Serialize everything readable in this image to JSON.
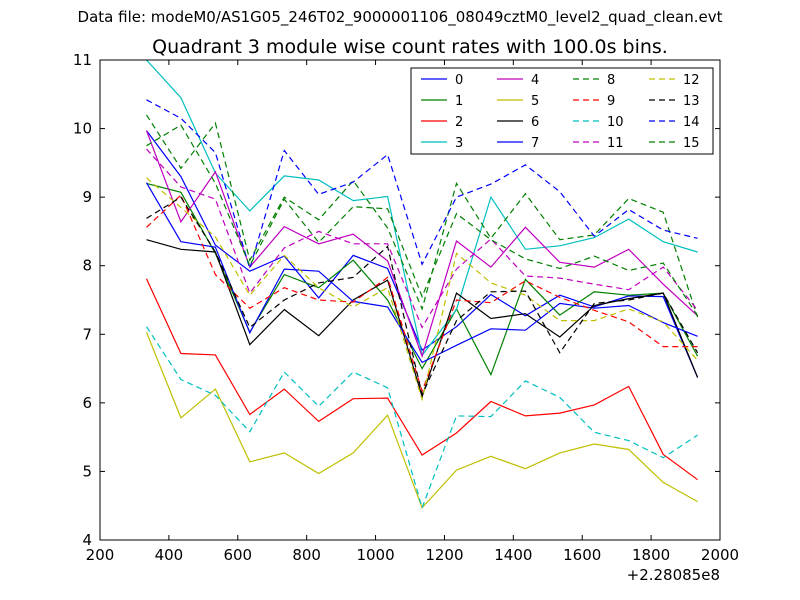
{
  "figure": {
    "supertitle": "Data file: modeM0/AS1G05_246T02_9000001106_08049cztM0_level2_quad_clean.evt"
  },
  "chart_data": {
    "type": "line",
    "title": "Quadrant 3 module wise count rates with 100.0s bins.",
    "xlabel": "",
    "ylabel": "",
    "x_offset_label": "+2.28085e8",
    "xlim": [
      200,
      2000
    ],
    "ylim": [
      4,
      11
    ],
    "xticks": [
      200,
      400,
      600,
      800,
      1000,
      1200,
      1400,
      1600,
      1800,
      2000
    ],
    "yticks": [
      4,
      5,
      6,
      7,
      8,
      9,
      10,
      11
    ],
    "grid": false,
    "legend_placement": "top-right",
    "legend_columns": 4,
    "x": [
      335,
      435,
      535,
      635,
      735,
      835,
      935,
      1035,
      1135,
      1235,
      1335,
      1435,
      1535,
      1635,
      1735,
      1835,
      1935
    ],
    "series": [
      {
        "name": "0",
        "color": "#0000ff",
        "style": "solid",
        "values": [
          9.97,
          9.3,
          8.3,
          7.92,
          8.14,
          7.53,
          8.15,
          7.96,
          6.77,
          7.11,
          7.58,
          7.27,
          7.57,
          7.4,
          7.56,
          7.55,
          6.37
        ]
      },
      {
        "name": "1",
        "color": "#008000",
        "style": "solid",
        "values": [
          9.2,
          9.07,
          8.18,
          7.03,
          7.87,
          7.68,
          8.08,
          7.5,
          6.5,
          7.37,
          6.41,
          7.8,
          7.28,
          7.62,
          7.57,
          7.6,
          6.68
        ]
      },
      {
        "name": "2",
        "color": "#ff0000",
        "style": "solid",
        "values": [
          7.81,
          6.72,
          6.7,
          5.83,
          6.2,
          5.73,
          6.06,
          6.07,
          5.24,
          5.56,
          6.02,
          5.81,
          5.85,
          5.97,
          6.24,
          5.25,
          4.88
        ]
      },
      {
        "name": "3",
        "color": "#00bfbf",
        "style": "solid",
        "values": [
          11.0,
          10.45,
          9.35,
          8.8,
          9.31,
          9.25,
          8.95,
          9.01,
          6.69,
          7.36,
          9.0,
          8.24,
          8.29,
          8.41,
          8.68,
          8.35,
          8.2
        ]
      },
      {
        "name": "4",
        "color": "#bf00bf",
        "style": "solid",
        "values": [
          9.97,
          8.64,
          9.37,
          7.98,
          8.57,
          8.32,
          8.46,
          8.07,
          6.68,
          8.36,
          7.98,
          8.56,
          8.05,
          7.98,
          8.24,
          7.73,
          7.27
        ]
      },
      {
        "name": "5",
        "color": "#bfbf00",
        "style": "solid",
        "values": [
          7.03,
          5.78,
          6.2,
          5.14,
          5.27,
          4.97,
          5.27,
          5.82,
          4.47,
          5.02,
          5.22,
          5.04,
          5.27,
          5.4,
          5.32,
          4.84,
          4.56
        ]
      },
      {
        "name": "6",
        "color": "#000000",
        "style": "solid",
        "values": [
          8.38,
          8.24,
          8.2,
          6.85,
          7.36,
          6.98,
          7.5,
          7.79,
          6.09,
          7.6,
          7.23,
          7.3,
          6.96,
          7.42,
          7.52,
          7.6,
          6.37
        ]
      },
      {
        "name": "7",
        "color": "#0000ff",
        "style": "solid",
        "values": [
          9.21,
          8.35,
          8.27,
          7.02,
          7.95,
          7.92,
          7.48,
          7.4,
          6.59,
          6.84,
          7.08,
          7.06,
          7.45,
          7.38,
          7.42,
          7.17,
          6.97
        ]
      },
      {
        "name": "8",
        "color": "#008000",
        "style": "dashed",
        "values": [
          10.2,
          9.42,
          10.08,
          8.08,
          9.0,
          8.67,
          9.24,
          8.55,
          7.37,
          9.2,
          8.4,
          9.05,
          8.38,
          8.45,
          8.98,
          8.78,
          7.25
        ]
      },
      {
        "name": "9",
        "color": "#ff0000",
        "style": "dashed",
        "values": [
          8.56,
          9.03,
          7.87,
          7.38,
          7.68,
          7.5,
          7.47,
          7.83,
          6.17,
          7.5,
          7.46,
          7.78,
          7.54,
          7.35,
          7.18,
          6.82,
          6.82
        ]
      },
      {
        "name": "10",
        "color": "#00bfbf",
        "style": "dashed",
        "values": [
          7.11,
          6.34,
          6.11,
          5.58,
          6.45,
          5.95,
          6.45,
          6.22,
          4.47,
          5.81,
          5.8,
          6.32,
          6.08,
          5.57,
          5.45,
          5.2,
          5.53
        ]
      },
      {
        "name": "11",
        "color": "#bf00bf",
        "style": "dashed",
        "values": [
          9.7,
          9.15,
          8.97,
          7.6,
          8.26,
          8.5,
          8.32,
          8.32,
          7.1,
          7.95,
          8.39,
          7.85,
          7.82,
          7.73,
          7.65,
          7.98,
          7.35
        ]
      },
      {
        "name": "12",
        "color": "#bfbf00",
        "style": "dashed",
        "values": [
          9.28,
          8.85,
          8.42,
          7.57,
          8.15,
          7.68,
          7.4,
          7.68,
          6.05,
          8.18,
          7.75,
          7.57,
          7.2,
          7.2,
          7.37,
          7.18,
          6.62
        ]
      },
      {
        "name": "13",
        "color": "#000000",
        "style": "dashed",
        "values": [
          8.69,
          9.0,
          8.2,
          7.1,
          7.5,
          7.75,
          7.83,
          8.28,
          6.12,
          7.2,
          7.62,
          7.63,
          6.73,
          7.45,
          7.5,
          7.6,
          6.73
        ]
      },
      {
        "name": "14",
        "color": "#0000ff",
        "style": "dashed",
        "values": [
          10.42,
          10.15,
          9.65,
          7.96,
          9.68,
          9.04,
          9.22,
          9.62,
          8.02,
          9.0,
          9.19,
          9.47,
          9.08,
          8.43,
          8.82,
          8.52,
          8.4
        ]
      },
      {
        "name": "15",
        "color": "#008000",
        "style": "dashed",
        "values": [
          9.75,
          10.05,
          9.2,
          8.0,
          8.97,
          8.34,
          8.86,
          8.83,
          7.55,
          8.76,
          8.38,
          8.1,
          7.96,
          8.14,
          7.93,
          8.04,
          7.27
        ]
      }
    ]
  }
}
